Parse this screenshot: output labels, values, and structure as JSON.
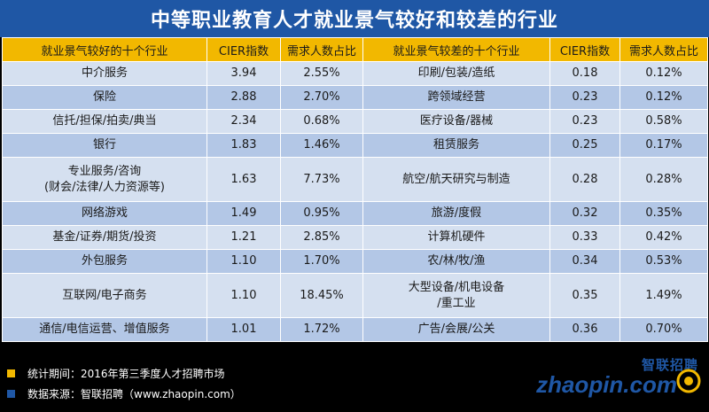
{
  "title": "中等职业教育人才就业景气较好和较差的行业",
  "headers": {
    "good_industry": "就业景气较好的十个行业",
    "good_cier": "CIER指数",
    "good_share": "需求人数占比",
    "poor_industry": "就业景气较差的十个行业",
    "poor_cier": "CIER指数",
    "poor_share": "需求人数占比"
  },
  "chart_data": {
    "type": "table",
    "title": "中等职业教育人才就业景气较好和较差的行业",
    "columns": [
      "就业景气较好的十个行业",
      "CIER指数",
      "需求人数占比",
      "就业景气较差的十个行业",
      "CIER指数",
      "需求人数占比"
    ],
    "rows": [
      {
        "good": [
          "中介服务"
        ],
        "good_cier": "3.94",
        "good_share": "2.55%",
        "poor": [
          "印刷/包装/造纸"
        ],
        "poor_cier": "0.18",
        "poor_share": "0.12%"
      },
      {
        "good": [
          "保险"
        ],
        "good_cier": "2.88",
        "good_share": "2.70%",
        "poor": [
          "跨领域经营"
        ],
        "poor_cier": "0.23",
        "poor_share": "0.12%"
      },
      {
        "good": [
          "信托/担保/拍卖/典当"
        ],
        "good_cier": "2.34",
        "good_share": "0.68%",
        "poor": [
          "医疗设备/器械"
        ],
        "poor_cier": "0.23",
        "poor_share": "0.58%"
      },
      {
        "good": [
          "银行"
        ],
        "good_cier": "1.83",
        "good_share": "1.46%",
        "poor": [
          "租赁服务"
        ],
        "poor_cier": "0.25",
        "poor_share": "0.17%"
      },
      {
        "good": [
          "专业服务/咨询",
          "(财会/法律/人力资源等)"
        ],
        "good_cier": "1.63",
        "good_share": "7.73%",
        "poor": [
          "航空/航天研究与制造"
        ],
        "poor_cier": "0.28",
        "poor_share": "0.28%"
      },
      {
        "good": [
          "网络游戏"
        ],
        "good_cier": "1.49",
        "good_share": "0.95%",
        "poor": [
          "旅游/度假"
        ],
        "poor_cier": "0.32",
        "poor_share": "0.35%"
      },
      {
        "good": [
          "基金/证券/期货/投资"
        ],
        "good_cier": "1.21",
        "good_share": "2.85%",
        "poor": [
          "计算机硬件"
        ],
        "poor_cier": "0.33",
        "poor_share": "0.42%"
      },
      {
        "good": [
          "外包服务"
        ],
        "good_cier": "1.10",
        "good_share": "1.70%",
        "poor": [
          "农/林/牧/渔"
        ],
        "poor_cier": "0.34",
        "poor_share": "0.53%"
      },
      {
        "good": [
          "互联网/电子商务"
        ],
        "good_cier": "1.10",
        "good_share": "18.45%",
        "poor": [
          "大型设备/机电设备",
          "/重工业"
        ],
        "poor_cier": "0.35",
        "poor_share": "1.49%"
      },
      {
        "good": [
          "通信/电信运营、增值服务"
        ],
        "good_cier": "1.01",
        "good_share": "1.72%",
        "poor": [
          "广告/会展/公关"
        ],
        "poor_cier": "0.36",
        "poor_share": "0.70%"
      }
    ]
  },
  "notes": [
    {
      "text": "统计期间：2016年第三季度人才招聘市场",
      "color": "#f2b800"
    },
    {
      "text": "数据来源：智联招聘（www.zhaopin.com）",
      "color": "#1f57a5"
    }
  ],
  "logo": {
    "cn": "智联招聘",
    "en": "zhaopin.com",
    "accent": "#f2b800",
    "brand": "#1f57a5"
  }
}
